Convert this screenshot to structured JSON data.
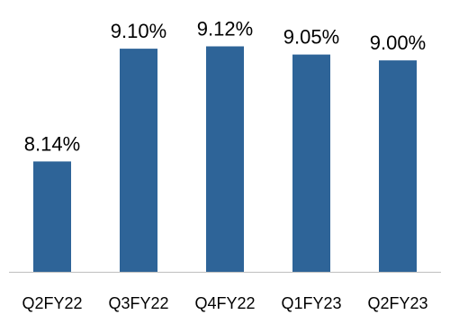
{
  "chart_data": {
    "type": "bar",
    "title": "",
    "xlabel": "",
    "ylabel": "",
    "categories": [
      "Q2FY22",
      "Q3FY22",
      "Q4FY22",
      "Q1FY23",
      "Q2FY23"
    ],
    "series": [
      {
        "values": [
          8.14,
          9.1,
          9.12,
          9.05,
          9.0
        ],
        "data_labels": [
          "8.14%",
          "9.10%",
          "9.12%",
          "9.05%",
          "9.00%"
        ],
        "color": "#2E6498"
      }
    ],
    "ylim": [
      7.2,
      9.3
    ],
    "y_axis_visible": false,
    "grid": false,
    "legend": "none",
    "baseline_color": "#BFBFBF"
  }
}
